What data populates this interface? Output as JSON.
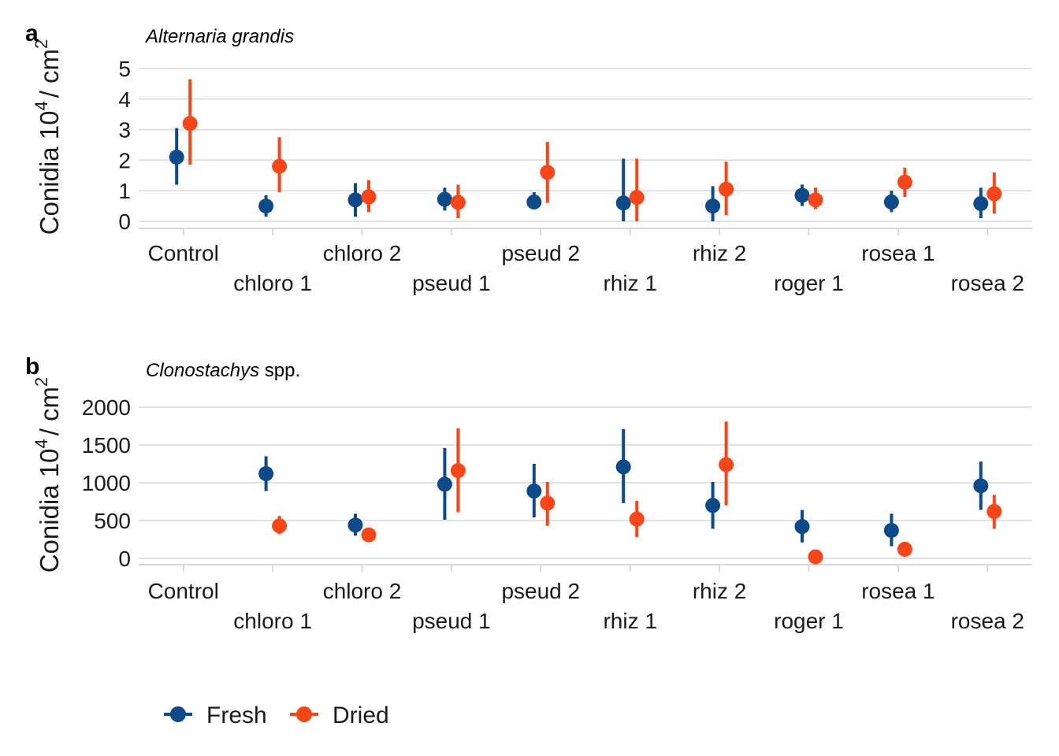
{
  "colors": {
    "fresh": "#0d4a8a",
    "dried": "#fa4616",
    "grid": "#d9d9d9",
    "axis": "#cccccc"
  },
  "legend": {
    "items": [
      {
        "key": "fresh",
        "label": "Fresh"
      },
      {
        "key": "dried",
        "label": "Dried"
      }
    ]
  },
  "chart_data": [
    {
      "type": "scatter",
      "panel": "a",
      "title_italic": "Alternaria grandis",
      "title_rest": "",
      "ylabel": "Conidia 10",
      "ylabel_sup": "4",
      "ylabel_tail": "/ cm",
      "ylabel_sup2": "2",
      "categories": [
        "Control",
        "chloro 1",
        "chloro 2",
        "pseud 1",
        "pseud 2",
        "rhiz 1",
        "rhiz 2",
        "roger 1",
        "rosea 1",
        "rosea 2"
      ],
      "yticks": [
        0,
        1,
        2,
        3,
        4,
        5
      ],
      "ylim": [
        -0.2,
        5.15
      ],
      "grid": true,
      "series": [
        {
          "name": "Fresh",
          "color_key": "fresh",
          "values": [
            2.1,
            0.5,
            0.7,
            0.72,
            0.63,
            0.6,
            0.5,
            0.85,
            0.63,
            0.58
          ],
          "lower": [
            1.2,
            0.15,
            0.15,
            0.35,
            0.4,
            0.0,
            0.0,
            0.5,
            0.3,
            0.1
          ],
          "upper": [
            3.05,
            0.85,
            1.25,
            1.1,
            0.95,
            2.05,
            1.15,
            1.2,
            1.0,
            1.1
          ]
        },
        {
          "name": "Dried",
          "color_key": "dried",
          "values": [
            3.2,
            1.8,
            0.8,
            0.62,
            1.6,
            0.78,
            1.05,
            0.7,
            1.28,
            0.9
          ],
          "lower": [
            1.85,
            0.95,
            0.3,
            0.1,
            0.6,
            0.0,
            0.2,
            0.4,
            0.8,
            0.25
          ],
          "upper": [
            4.65,
            2.75,
            1.35,
            1.2,
            2.6,
            2.05,
            1.95,
            1.1,
            1.75,
            1.6
          ]
        }
      ]
    },
    {
      "type": "scatter",
      "panel": "b",
      "title_italic": "Clonostachys",
      "title_rest": " spp.",
      "ylabel": "Conidia 10",
      "ylabel_sup": "4",
      "ylabel_tail": "/ cm",
      "ylabel_sup2": "2",
      "categories": [
        "Control",
        "chloro 1",
        "chloro 2",
        "pseud 1",
        "pseud 2",
        "rhiz 1",
        "rhiz 2",
        "roger 1",
        "rosea 1",
        "rosea 2"
      ],
      "yticks": [
        0,
        500,
        1000,
        1500,
        2000
      ],
      "ylim": [
        -80,
        2080
      ],
      "grid": true,
      "series": [
        {
          "name": "Fresh",
          "color_key": "fresh",
          "values": [
            null,
            1120,
            440,
            980,
            890,
            1210,
            700,
            420,
            370,
            960
          ],
          "lower": [
            null,
            890,
            300,
            510,
            540,
            730,
            390,
            210,
            160,
            640
          ],
          "upper": [
            null,
            1350,
            590,
            1460,
            1250,
            1710,
            1010,
            640,
            590,
            1280
          ]
        },
        {
          "name": "Dried",
          "color_key": "dried",
          "values": [
            null,
            430,
            310,
            1160,
            730,
            520,
            1240,
            20,
            120,
            620
          ],
          "lower": [
            null,
            320,
            230,
            610,
            430,
            280,
            700,
            0,
            60,
            390
          ],
          "upper": [
            null,
            560,
            400,
            1720,
            1010,
            760,
            1810,
            40,
            180,
            840
          ]
        }
      ]
    }
  ]
}
